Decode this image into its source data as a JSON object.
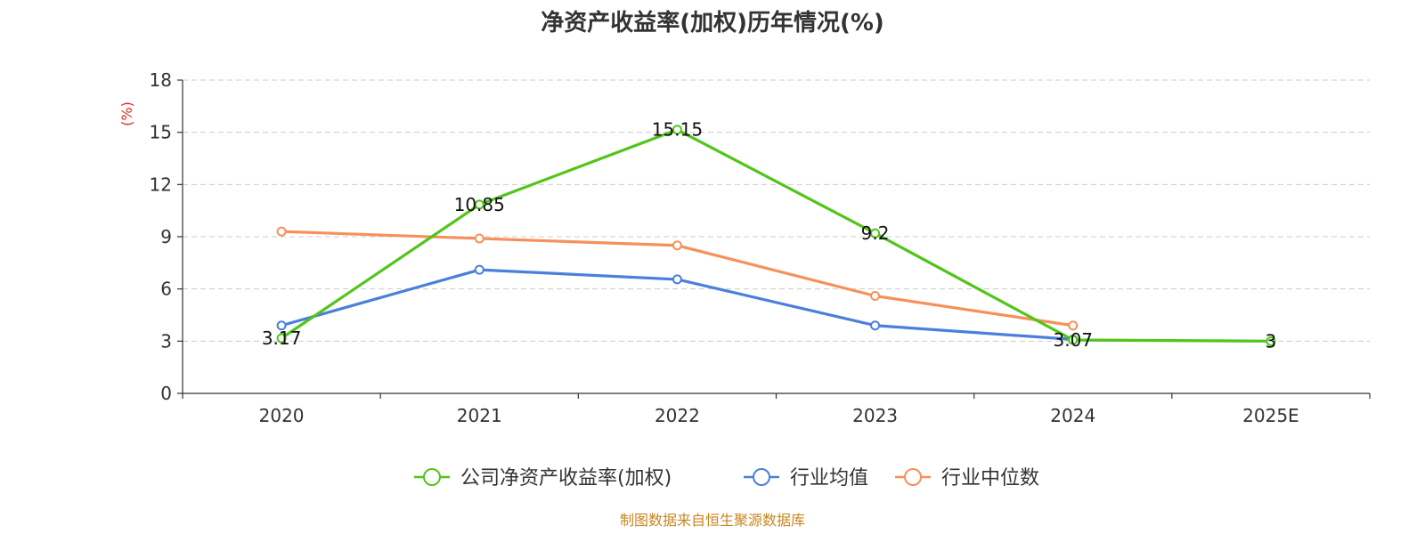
{
  "chart_data": {
    "type": "line",
    "title": "净资产收益率(加权)历年情况(%)",
    "ylabel": "(%)",
    "xlabel": "",
    "categories": [
      "2020",
      "2021",
      "2022",
      "2023",
      "2024",
      "2025E"
    ],
    "ylim": [
      0,
      18
    ],
    "yticks": [
      0,
      3,
      6,
      9,
      12,
      15,
      18
    ],
    "grid": true,
    "legend_position": "bottom",
    "series": [
      {
        "name": "公司净资产收益率(加权)",
        "color": "#52c41a",
        "values": [
          3.17,
          10.85,
          15.15,
          9.2,
          3.07,
          3
        ],
        "labels": [
          "3.17",
          "10.85",
          "15.15",
          "9.2",
          "3.07",
          "3"
        ]
      },
      {
        "name": "行业均值",
        "color": "#4a7fdc",
        "values": [
          3.9,
          7.1,
          6.55,
          3.9,
          3.1,
          null
        ]
      },
      {
        "name": "行业中位数",
        "color": "#f7905a",
        "values": [
          9.3,
          8.9,
          8.5,
          5.6,
          3.9,
          null
        ]
      }
    ]
  },
  "source_note": "制图数据来自恒生聚源数据库"
}
